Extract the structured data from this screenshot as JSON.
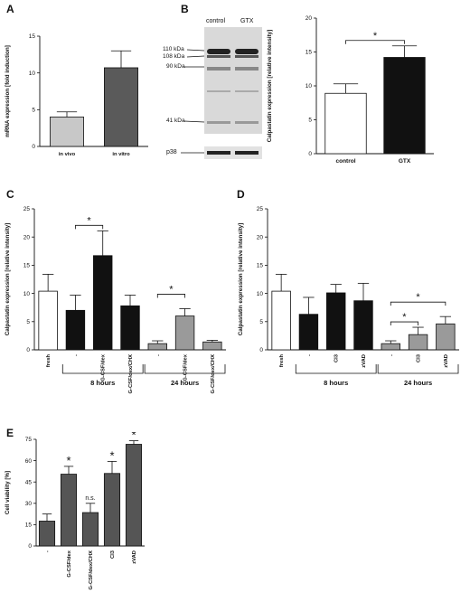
{
  "panels": {
    "A": "A",
    "B": "B",
    "C": "C",
    "D": "D",
    "E": "E"
  },
  "blot": {
    "lanes": [
      "control",
      "GTX"
    ],
    "markers": [
      "110 kDa",
      "108 kDa",
      "90 kDa",
      "41 kDa"
    ],
    "loading_label": "p38"
  },
  "chart_data": [
    {
      "id": "A",
      "type": "bar",
      "categories": [
        "in vivo",
        "in vitro"
      ],
      "values": [
        4.0,
        10.7
      ],
      "errors": [
        0.7,
        2.3
      ],
      "colors": [
        "#c8c8c8",
        "#5a5a5a"
      ],
      "ylabel": "mRNA expression [fold induction]",
      "ylim": [
        0,
        15
      ],
      "yticks": [
        0,
        5,
        10,
        15
      ]
    },
    {
      "id": "B",
      "type": "bar",
      "categories": [
        "control",
        "GTX"
      ],
      "values": [
        8.9,
        14.2
      ],
      "errors": [
        1.4,
        1.7
      ],
      "colors": [
        "#ffffff",
        "#111111"
      ],
      "ylabel": "Calpastatin expression [relative intensity]",
      "ylim": [
        0,
        20
      ],
      "yticks": [
        0,
        5,
        10,
        15,
        20
      ],
      "significance": [
        {
          "from": 0,
          "to": 1,
          "label": "*"
        }
      ]
    },
    {
      "id": "C",
      "type": "bar",
      "categories": [
        "fresh",
        "-",
        "G-CSF/dex",
        "G-CSF/dex/CHX",
        "-",
        "G-CSF/dex",
        "G-CSF/dex/CHX"
      ],
      "values": [
        10.4,
        7.0,
        16.7,
        7.8,
        1.1,
        6.0,
        1.4
      ],
      "errors": [
        3.0,
        2.7,
        4.4,
        1.9,
        0.5,
        1.3,
        0.3
      ],
      "colors": [
        "#ffffff",
        "#111111",
        "#111111",
        "#111111",
        "#9a9a9a",
        "#9a9a9a",
        "#9a9a9a"
      ],
      "ylabel": "Calpastatin expression [relative intensity]",
      "ylim": [
        0,
        25
      ],
      "yticks": [
        0,
        5,
        10,
        15,
        20,
        25
      ],
      "significance": [
        {
          "from": 1,
          "to": 2,
          "label": "*"
        },
        {
          "from": 4,
          "to": 5,
          "label": "*"
        }
      ],
      "groups": [
        {
          "label": "8 hours",
          "start": 1,
          "end": 3
        },
        {
          "label": "24 hours",
          "start": 4,
          "end": 6
        }
      ]
    },
    {
      "id": "D",
      "type": "bar",
      "categories": [
        "fresh",
        "-",
        "CI3",
        "zVAD",
        "-",
        "CI3",
        "zVAD"
      ],
      "values": [
        10.4,
        6.3,
        10.1,
        8.7,
        1.1,
        2.7,
        4.6
      ],
      "errors": [
        3.0,
        3.0,
        1.5,
        3.1,
        0.5,
        1.3,
        1.3
      ],
      "colors": [
        "#ffffff",
        "#111111",
        "#111111",
        "#111111",
        "#9a9a9a",
        "#9a9a9a",
        "#9a9a9a"
      ],
      "ylabel": "Calpastatin expression [relative intensity]",
      "ylim": [
        0,
        25
      ],
      "yticks": [
        0,
        5,
        10,
        15,
        20,
        25
      ],
      "significance": [
        {
          "from": 4,
          "to": 5,
          "label": "*"
        },
        {
          "from": 4,
          "to": 6,
          "label": "*"
        }
      ],
      "groups": [
        {
          "label": "8 hours",
          "start": 1,
          "end": 3
        },
        {
          "label": "24 hours",
          "start": 4,
          "end": 6
        }
      ]
    },
    {
      "id": "E",
      "type": "bar",
      "categories": [
        "-",
        "G-CSF/dex",
        "G-CSF/dex/CHX",
        "CI3",
        "zVAD"
      ],
      "values": [
        17.5,
        50.5,
        23.5,
        51.0,
        71.5
      ],
      "errors": [
        5.0,
        5.5,
        6.5,
        8.5,
        2.5
      ],
      "colors": [
        "#555555",
        "#555555",
        "#555555",
        "#555555",
        "#555555"
      ],
      "ylabel": "Cell viability [%]",
      "ylim": [
        0,
        75
      ],
      "yticks": [
        0,
        15,
        30,
        45,
        60,
        75
      ],
      "annotations": [
        "",
        "*",
        "n.s.",
        "*",
        "*"
      ]
    }
  ]
}
